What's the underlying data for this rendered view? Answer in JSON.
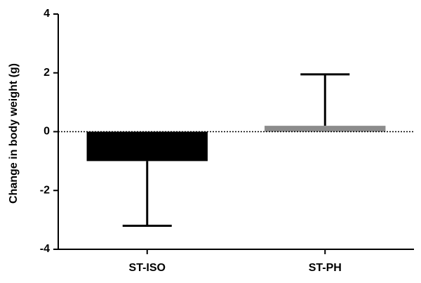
{
  "chart_data": {
    "type": "bar",
    "y_label": "Change in body weight (g)",
    "categories": [
      "ST-ISO",
      "ST-PH"
    ],
    "values": [
      -1.0,
      0.2
    ],
    "errors": [
      2.2,
      1.75
    ],
    "colors": [
      "#000000",
      "#8c8c8c"
    ],
    "ylim": [
      -4,
      4
    ],
    "yticks": [
      -4,
      -2,
      0,
      2,
      4
    ],
    "zero_line": "dotted"
  }
}
